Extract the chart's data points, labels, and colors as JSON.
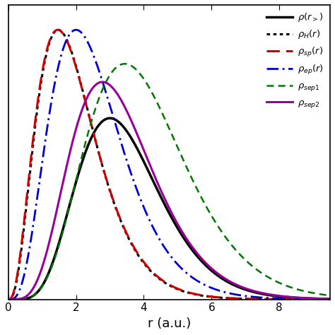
{
  "xlabel": "r (a.u.)",
  "xlim": [
    0,
    9.5
  ],
  "ylim": [
    0,
    0.65
  ],
  "xticks": [
    0,
    2,
    4,
    6,
    8
  ],
  "curves": [
    {
      "name": "rho_r",
      "label": "$\\rho(r_{>})$",
      "color": "#000000",
      "linestyle": "solid",
      "linewidth": 2.5,
      "alpha": 6.0,
      "beta": 2.0,
      "peak_val": 0.4
    },
    {
      "name": "rho_H",
      "label": "$\\rho_H(r)$",
      "color": "#000000",
      "linestyle": "dotted",
      "linewidth": 2.2,
      "alpha": 2.8,
      "beta": 1.9,
      "peak_val": 0.595
    },
    {
      "name": "rho_sp",
      "label": "$\\rho_{sp}(r)$",
      "color": "#cc0000",
      "linestyle": "dashed",
      "linewidth": 2.2,
      "alpha": 2.7,
      "beta": 1.85,
      "peak_val": 0.595
    },
    {
      "name": "rho_ep",
      "label": "$\\rho_{ep}(r)$",
      "color": "#0000cc",
      "linestyle": "dashdot",
      "linewidth": 2.0,
      "alpha": 3.5,
      "beta": 1.75,
      "peak_val": 0.595
    },
    {
      "name": "rho_sep1",
      "label": "$\\rho_{sep1}$",
      "color": "#007700",
      "linestyle": "dashed",
      "linewidth": 1.8,
      "alpha": 5.5,
      "beta": 1.6,
      "peak_val": 0.52
    },
    {
      "name": "rho_sep2",
      "label": "$\\rho_{sep2}$",
      "color": "#990099",
      "linestyle": "solid",
      "linewidth": 2.2,
      "alpha": 5.0,
      "beta": 1.8,
      "peak_val": 0.48
    }
  ]
}
